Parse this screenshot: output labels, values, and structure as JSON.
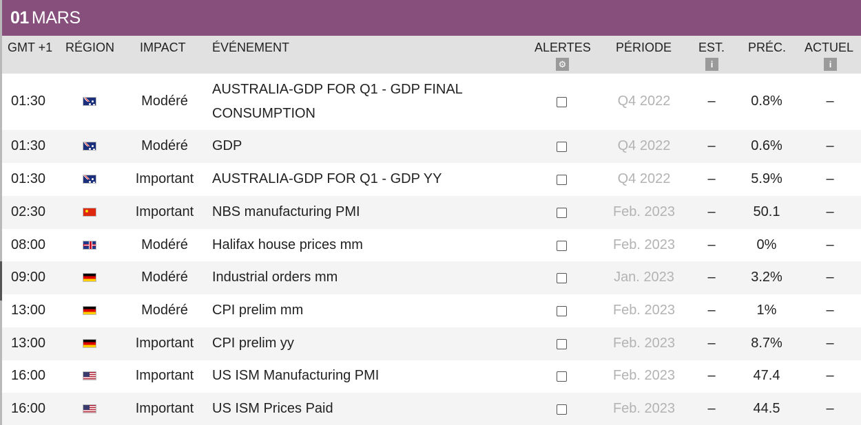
{
  "date": {
    "day": "01",
    "month": "MARS"
  },
  "columns": {
    "time": "GMT +1",
    "region": "RÉGION",
    "impact": "IMPACT",
    "event": "ÉVÉNEMENT",
    "alerts": "ALERTES",
    "period": "PÉRIODE",
    "est": "EST.",
    "prec": "PRÉC.",
    "actual": "ACTUEL"
  },
  "header_icons": {
    "alerts": "gear-icon",
    "est": "info-icon",
    "actual": "info-icon"
  },
  "rows": [
    {
      "time": "01:30",
      "flag": "au",
      "impact": "Modéré",
      "event": "AUSTRALIA-GDP FOR Q1 - GDP FINAL CONSUMPTION",
      "period": "Q4 2022",
      "est": "–",
      "prec": "0.8%",
      "actual": "–"
    },
    {
      "time": "01:30",
      "flag": "au",
      "impact": "Modéré",
      "event": "GDP",
      "period": "Q4 2022",
      "est": "–",
      "prec": "0.6%",
      "actual": "–"
    },
    {
      "time": "01:30",
      "flag": "au",
      "impact": "Important",
      "event": "AUSTRALIA-GDP FOR Q1 - GDP YY",
      "period": "Q4 2022",
      "est": "–",
      "prec": "5.9%",
      "actual": "–"
    },
    {
      "time": "02:30",
      "flag": "cn",
      "impact": "Important",
      "event": "NBS manufacturing PMI",
      "period": "Feb. 2023",
      "est": "–",
      "prec": "50.1",
      "actual": "–"
    },
    {
      "time": "08:00",
      "flag": "gb",
      "impact": "Modéré",
      "event": "Halifax house prices mm",
      "period": "Feb. 2023",
      "est": "–",
      "prec": "0%",
      "actual": "–"
    },
    {
      "time": "09:00",
      "flag": "de",
      "impact": "Modéré",
      "event": "Industrial orders mm",
      "period": "Jan. 2023",
      "est": "–",
      "prec": "3.2%",
      "actual": "–"
    },
    {
      "time": "13:00",
      "flag": "de",
      "impact": "Modéré",
      "event": "CPI prelim mm",
      "period": "Feb. 2023",
      "est": "–",
      "prec": "1%",
      "actual": "–"
    },
    {
      "time": "13:00",
      "flag": "de",
      "impact": "Important",
      "event": "CPI prelim yy",
      "period": "Feb. 2023",
      "est": "–",
      "prec": "8.7%",
      "actual": "–"
    },
    {
      "time": "16:00",
      "flag": "us",
      "impact": "Important",
      "event": "US ISM Manufacturing PMI",
      "period": "Feb. 2023",
      "est": "–",
      "prec": "47.4",
      "actual": "–"
    },
    {
      "time": "16:00",
      "flag": "us",
      "impact": "Important",
      "event": "US ISM Prices Paid",
      "period": "Feb. 2023",
      "est": "–",
      "prec": "44.5",
      "actual": "–"
    }
  ],
  "colors": {
    "header_bg": "#864f7c",
    "colhead_bg": "#e1e1e1",
    "alt_row_bg": "#f4f4f4",
    "period_text": "#b3b3b3"
  }
}
